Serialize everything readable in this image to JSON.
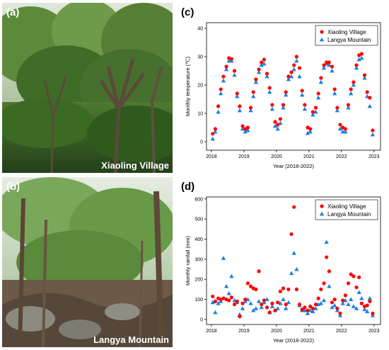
{
  "panels": {
    "a": {
      "letter": "(a)",
      "caption": "Xiaoling Village"
    },
    "b": {
      "letter": "(b)",
      "caption": "Langya Mountain"
    },
    "c": {
      "letter": "(c)"
    },
    "d": {
      "letter": "(d)"
    }
  },
  "colors": {
    "xiaoling": "#ff0000",
    "langya": "#1f7fe0"
  },
  "chart_data": [
    {
      "type": "scatter",
      "panel": "c",
      "xlabel": "Year (2018-2022)",
      "ylabel": "Monthly temperature (℃)",
      "xlim": [
        2017.85,
        2023.2
      ],
      "ylim": [
        -3,
        42
      ],
      "xticks": [
        2018,
        2019,
        2020,
        2021,
        2022,
        2023
      ],
      "yticks": [
        0,
        10,
        20,
        30,
        40
      ],
      "legend_position": "top-right",
      "series": [
        {
          "name": "Xiaoling Village",
          "marker": "circle",
          "color": "#ff0000",
          "x": [
            2018.04,
            2018.12,
            2018.21,
            2018.29,
            2018.37,
            2018.46,
            2018.54,
            2018.62,
            2018.71,
            2018.79,
            2018.87,
            2018.96,
            2019.04,
            2019.12,
            2019.21,
            2019.29,
            2019.37,
            2019.46,
            2019.54,
            2019.62,
            2019.71,
            2019.79,
            2019.87,
            2019.96,
            2020.04,
            2020.12,
            2020.21,
            2020.29,
            2020.37,
            2020.46,
            2020.54,
            2020.62,
            2020.71,
            2020.79,
            2020.87,
            2020.96,
            2021.04,
            2021.12,
            2021.21,
            2021.29,
            2021.37,
            2021.46,
            2021.54,
            2021.62,
            2021.71,
            2021.79,
            2021.87,
            2021.96,
            2022.04,
            2022.12,
            2022.21,
            2022.29,
            2022.37,
            2022.46,
            2022.54,
            2022.62,
            2022.71,
            2022.79,
            2022.87,
            2022.96
          ],
          "y": [
            2.8,
            4.5,
            12.5,
            18.5,
            23,
            26.5,
            29.5,
            29.2,
            25,
            17,
            12.5,
            5.5,
            4.5,
            5,
            12,
            17.5,
            22,
            25.5,
            28,
            29,
            24,
            19,
            13,
            7,
            6,
            8,
            13,
            17.5,
            23,
            24.5,
            27,
            30,
            26,
            18,
            13,
            5,
            4.5,
            10.5,
            12,
            17,
            22.5,
            27,
            28,
            28,
            26.5,
            18.5,
            12,
            6,
            5,
            4.5,
            13,
            18.5,
            21,
            27,
            30.5,
            31,
            23.5,
            17.5,
            15.5,
            4
          ]
        },
        {
          "name": "Langya Mountain",
          "marker": "triangle",
          "color": "#1f7fe0",
          "x": [
            2018.04,
            2018.12,
            2018.21,
            2018.29,
            2018.37,
            2018.46,
            2018.54,
            2018.62,
            2018.71,
            2018.79,
            2018.87,
            2018.96,
            2019.04,
            2019.12,
            2019.21,
            2019.29,
            2019.37,
            2019.46,
            2019.54,
            2019.62,
            2019.71,
            2019.79,
            2019.87,
            2019.96,
            2020.04,
            2020.12,
            2020.21,
            2020.29,
            2020.37,
            2020.46,
            2020.54,
            2020.62,
            2020.71,
            2020.79,
            2020.87,
            2020.96,
            2021.04,
            2021.12,
            2021.21,
            2021.29,
            2021.37,
            2021.46,
            2021.54,
            2021.62,
            2021.71,
            2021.79,
            2021.87,
            2021.96,
            2022.04,
            2022.12,
            2022.21,
            2022.29,
            2022.37,
            2022.46,
            2022.54,
            2022.62,
            2022.71,
            2022.79,
            2022.87,
            2022.96
          ],
          "y": [
            1,
            3.5,
            10.5,
            17,
            21.5,
            25.5,
            28.5,
            28.5,
            23.5,
            16,
            11,
            4.5,
            3.5,
            4,
            11,
            16,
            21,
            24.5,
            27,
            27.5,
            23,
            17.5,
            11.5,
            5.5,
            4.5,
            6.5,
            12,
            16.5,
            22,
            23,
            25.5,
            28.5,
            23,
            16.5,
            11.5,
            3,
            3.5,
            9.5,
            10.5,
            15.5,
            21,
            26,
            27.5,
            27,
            25,
            17,
            11,
            4.5,
            3.5,
            3.5,
            12,
            17,
            20,
            26,
            29,
            29.5,
            22.5,
            16,
            12.5,
            2.5
          ]
        }
      ]
    },
    {
      "type": "scatter",
      "panel": "d",
      "xlabel": "Year (2018-2022)",
      "ylabel": "Monthly rainfall (mm)",
      "xlim": [
        2017.85,
        2023.2
      ],
      "ylim": [
        -25,
        610
      ],
      "xticks": [
        2018,
        2019,
        2020,
        2021,
        2022,
        2023
      ],
      "yticks": [
        0,
        100,
        200,
        300,
        400,
        500,
        600
      ],
      "legend_position": "top-right",
      "series": [
        {
          "name": "Xiaoling Village",
          "marker": "circle",
          "color": "#ff0000",
          "x": [
            2018.04,
            2018.12,
            2018.21,
            2018.29,
            2018.37,
            2018.46,
            2018.54,
            2018.62,
            2018.71,
            2018.79,
            2018.87,
            2018.96,
            2019.04,
            2019.12,
            2019.21,
            2019.29,
            2019.37,
            2019.46,
            2019.54,
            2019.62,
            2019.71,
            2019.79,
            2019.87,
            2019.96,
            2020.04,
            2020.12,
            2020.21,
            2020.29,
            2020.37,
            2020.46,
            2020.54,
            2020.62,
            2020.71,
            2020.79,
            2020.87,
            2020.96,
            2021.04,
            2021.12,
            2021.21,
            2021.29,
            2021.37,
            2021.46,
            2021.54,
            2021.62,
            2021.71,
            2021.79,
            2021.87,
            2021.96,
            2022.04,
            2022.12,
            2022.21,
            2022.29,
            2022.37,
            2022.46,
            2022.54,
            2022.62,
            2022.71,
            2022.79,
            2022.87,
            2022.96
          ],
          "y": [
            115,
            90,
            105,
            100,
            105,
            100,
            95,
            110,
            75,
            90,
            15,
            80,
            100,
            180,
            165,
            155,
            150,
            240,
            75,
            95,
            60,
            35,
            80,
            45,
            85,
            140,
            155,
            75,
            150,
            425,
            560,
            150,
            75,
            50,
            60,
            45,
            65,
            55,
            75,
            105,
            150,
            180,
            310,
            240,
            85,
            100,
            55,
            30,
            95,
            120,
            180,
            225,
            215,
            160,
            210,
            80,
            65,
            70,
            90,
            30
          ]
        },
        {
          "name": "Langya Mountain",
          "marker": "triangle",
          "color": "#1f7fe0",
          "x": [
            2018.04,
            2018.12,
            2018.21,
            2018.29,
            2018.37,
            2018.46,
            2018.54,
            2018.62,
            2018.71,
            2018.79,
            2018.87,
            2018.96,
            2019.04,
            2019.12,
            2019.21,
            2019.29,
            2019.37,
            2019.46,
            2019.54,
            2019.62,
            2019.71,
            2019.79,
            2019.87,
            2019.96,
            2020.04,
            2020.12,
            2020.21,
            2020.29,
            2020.37,
            2020.46,
            2020.54,
            2020.62,
            2020.71,
            2020.79,
            2020.87,
            2020.96,
            2021.04,
            2021.12,
            2021.21,
            2021.29,
            2021.37,
            2021.46,
            2021.54,
            2021.62,
            2021.71,
            2021.79,
            2021.87,
            2021.96,
            2022.04,
            2022.12,
            2022.21,
            2022.29,
            2022.37,
            2022.46,
            2022.54,
            2022.62,
            2022.71,
            2022.79,
            2022.87,
            2022.96
          ],
          "y": [
            85,
            35,
            80,
            90,
            305,
            165,
            130,
            215,
            95,
            85,
            25,
            55,
            90,
            100,
            80,
            45,
            55,
            90,
            60,
            85,
            100,
            35,
            65,
            45,
            55,
            80,
            100,
            55,
            85,
            230,
            330,
            250,
            70,
            45,
            45,
            30,
            45,
            40,
            55,
            75,
            80,
            95,
            385,
            165,
            60,
            70,
            45,
            20,
            80,
            95,
            75,
            100,
            65,
            55,
            135,
            105,
            50,
            40,
            105,
            20
          ]
        }
      ]
    }
  ]
}
